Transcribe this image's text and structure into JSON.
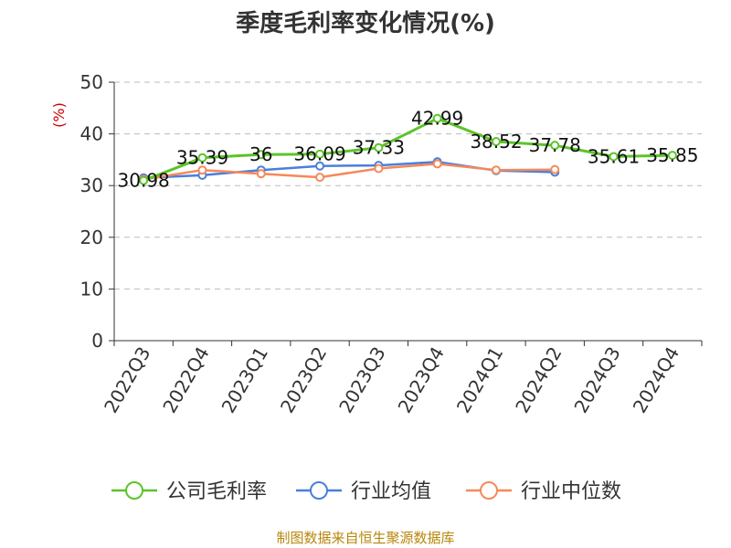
{
  "chart_data": {
    "type": "line",
    "title": "季度毛利率变化情况(%)",
    "ylabel": "(%)",
    "xlabel": "",
    "categories": [
      "2022Q3",
      "2022Q4",
      "2023Q1",
      "2023Q2",
      "2023Q3",
      "2023Q4",
      "2024Q1",
      "2024Q2",
      "2024Q3",
      "2024Q4"
    ],
    "ylim": [
      0,
      50
    ],
    "yticks": [
      0,
      10,
      20,
      30,
      40,
      50
    ],
    "grid": true,
    "legend_position": "bottom",
    "series": [
      {
        "name": "公司毛利率",
        "color": "#5cc42a",
        "values": [
          30.98,
          35.39,
          36,
          36.09,
          37.33,
          42.99,
          38.52,
          37.78,
          35.61,
          35.85
        ],
        "labels": [
          "30.98",
          "35.39",
          "36",
          "36.09",
          "37.33",
          "42.99",
          "38.52",
          "37.78",
          "35.61",
          "35.85"
        ]
      },
      {
        "name": "行业均值",
        "color": "#4a7fdc",
        "values": [
          31.5,
          32.0,
          33.0,
          33.8,
          33.9,
          34.6,
          32.9,
          32.6,
          null,
          null
        ]
      },
      {
        "name": "行业中位数",
        "color": "#f5895a",
        "values": [
          31.2,
          33.0,
          32.3,
          31.6,
          33.3,
          34.2,
          33.0,
          33.1,
          null,
          null
        ]
      }
    ],
    "source": "制图数据来自恒生聚源数据库"
  }
}
